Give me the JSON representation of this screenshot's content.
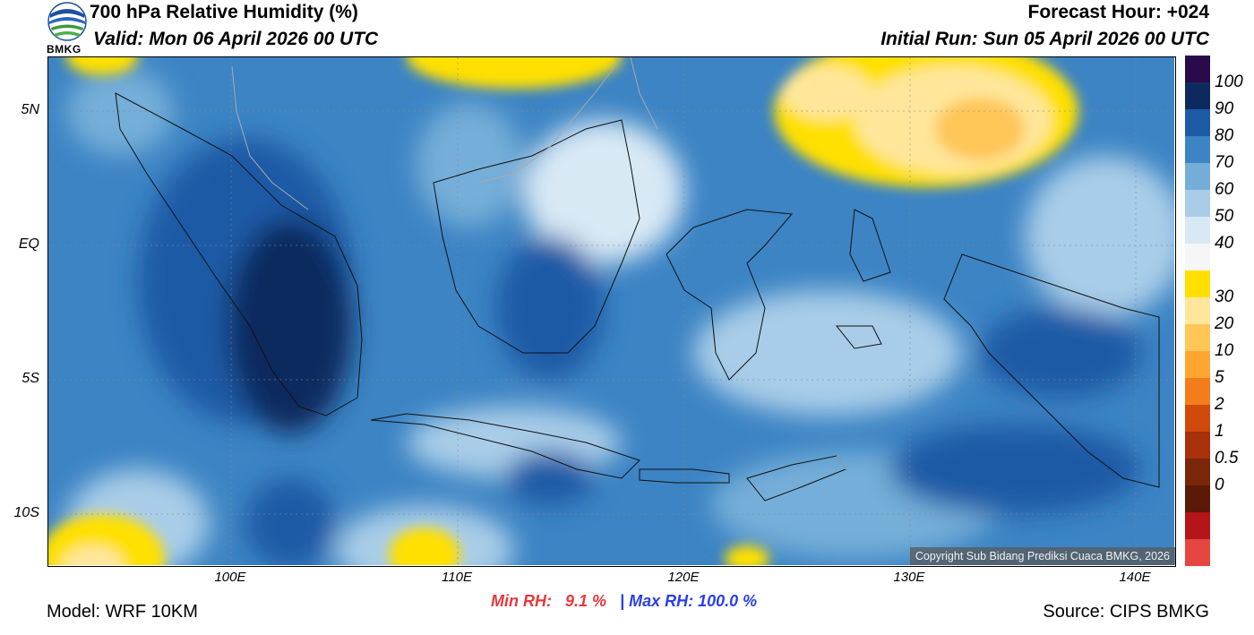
{
  "header": {
    "title": "700 hPa Relative Humidity (%)",
    "valid": "Valid: Mon 06 April 2026 00 UTC",
    "forecast_hour": "Forecast Hour: +024",
    "initial_run": "Initial Run: Sun 05 April 2026 00 UTC",
    "logo_text": "BMKG"
  },
  "map": {
    "lat_labels": [
      "5N",
      "EQ",
      "5S",
      "10S"
    ],
    "lon_labels": [
      "100E",
      "110E",
      "120E",
      "130E",
      "140E"
    ],
    "copyright": "Copyright Sub Bidang Prediksi Cuaca BMKG, 2026"
  },
  "colorbar": {
    "labels": [
      "100",
      "90",
      "80",
      "70",
      "60",
      "50",
      "40",
      "30",
      "20",
      "10",
      "5",
      "2",
      "1",
      "0.5",
      "0"
    ],
    "colors": [
      "#2a0a4a",
      "#0d2a5e",
      "#1c5aa6",
      "#3c84c4",
      "#74aed8",
      "#a9cde8",
      "#d8e9f4",
      "#f6f6f6",
      "#ffe000",
      "#ffe69a",
      "#ffc658",
      "#ffa630",
      "#f37c1d",
      "#d04a0c",
      "#a8300a",
      "#7a2608",
      "#5a1a06",
      "#b5141a",
      "#e64540"
    ]
  },
  "stats": {
    "min_label": "Min RH:",
    "min_value": "9.1 %",
    "separator": "|",
    "max_label": "Max RH:",
    "max_value": "100.0 %"
  },
  "footer": {
    "model": "Model: WRF 10KM",
    "source": "Source: CIPS BMKG"
  }
}
